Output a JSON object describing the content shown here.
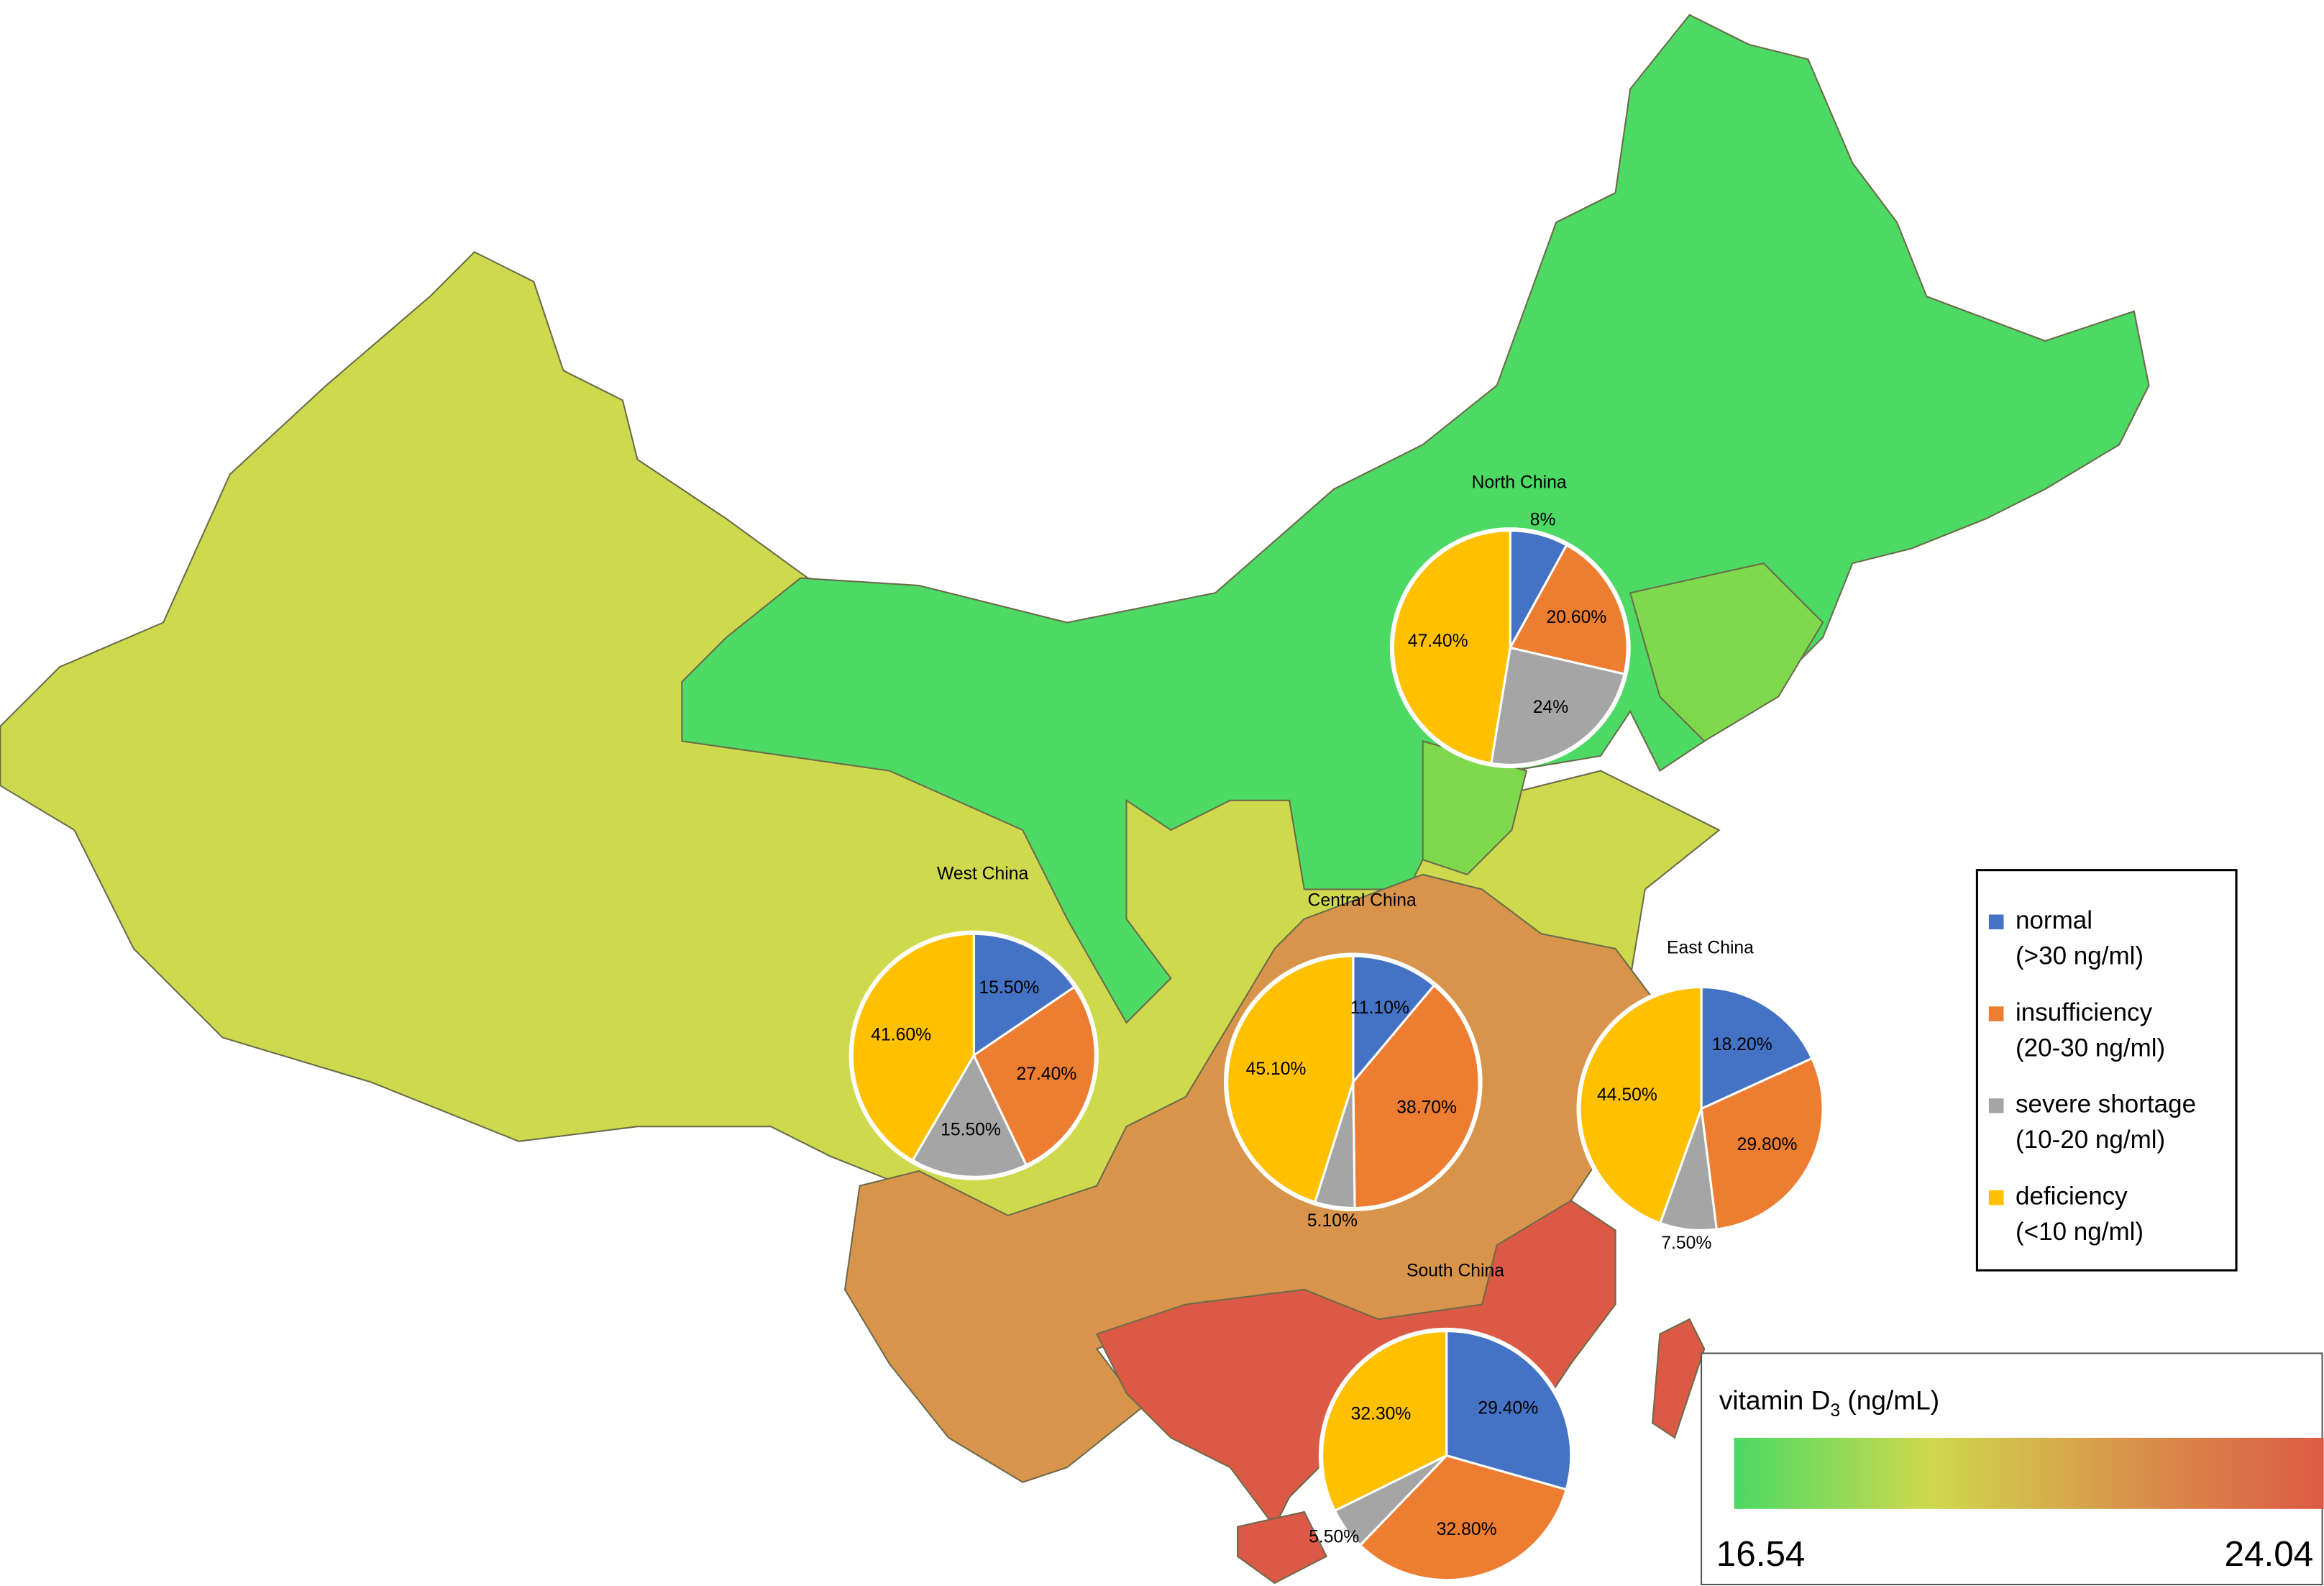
{
  "legend": {
    "items": [
      {
        "name": "normal",
        "range": "(>30 ng/ml)",
        "color": "#4472c4"
      },
      {
        "name": "insufficiency",
        "range": "(20-30 ng/ml)",
        "color": "#ed7d31"
      },
      {
        "name": "severe shortage",
        "range": "(10-20 ng/ml)",
        "color": "#a5a5a5"
      },
      {
        "name": "deficiency",
        "range": "(<10 ng/ml)",
        "color": "#ffc000"
      }
    ]
  },
  "colorbar": {
    "title_parts": [
      "vitamin D",
      "3",
      " (ng/mL)"
    ],
    "min": 16.54,
    "max": 24.04,
    "colors": [
      "#4cd964",
      "#cfd94d",
      "#d8944a",
      "#dc5a45"
    ]
  },
  "regions": [
    {
      "name": "North China",
      "values": [
        8,
        20.6,
        24,
        47.4
      ],
      "value_labels": [
        "8%",
        "20.60%",
        "24%",
        "47.40%"
      ]
    },
    {
      "name": "West China",
      "values": [
        15.5,
        27.4,
        15.5,
        41.6
      ],
      "value_labels": [
        "15.50%",
        "27.40%",
        "15.50%",
        "41.60%"
      ]
    },
    {
      "name": "Central China",
      "values": [
        11.1,
        38.7,
        5.1,
        45.1
      ],
      "value_labels": [
        "11.10%",
        "38.70%",
        "5.10%",
        "45.10%"
      ]
    },
    {
      "name": "East China",
      "values": [
        18.2,
        29.8,
        7.5,
        44.5
      ],
      "value_labels": [
        "18.20%",
        "29.80%",
        "7.50%",
        "44.50%"
      ]
    },
    {
      "name": "South China",
      "values": [
        29.4,
        32.8,
        5.5,
        32.3
      ],
      "value_labels": [
        "29.40%",
        "32.80%",
        "5.50%",
        "32.30%"
      ]
    }
  ]
}
